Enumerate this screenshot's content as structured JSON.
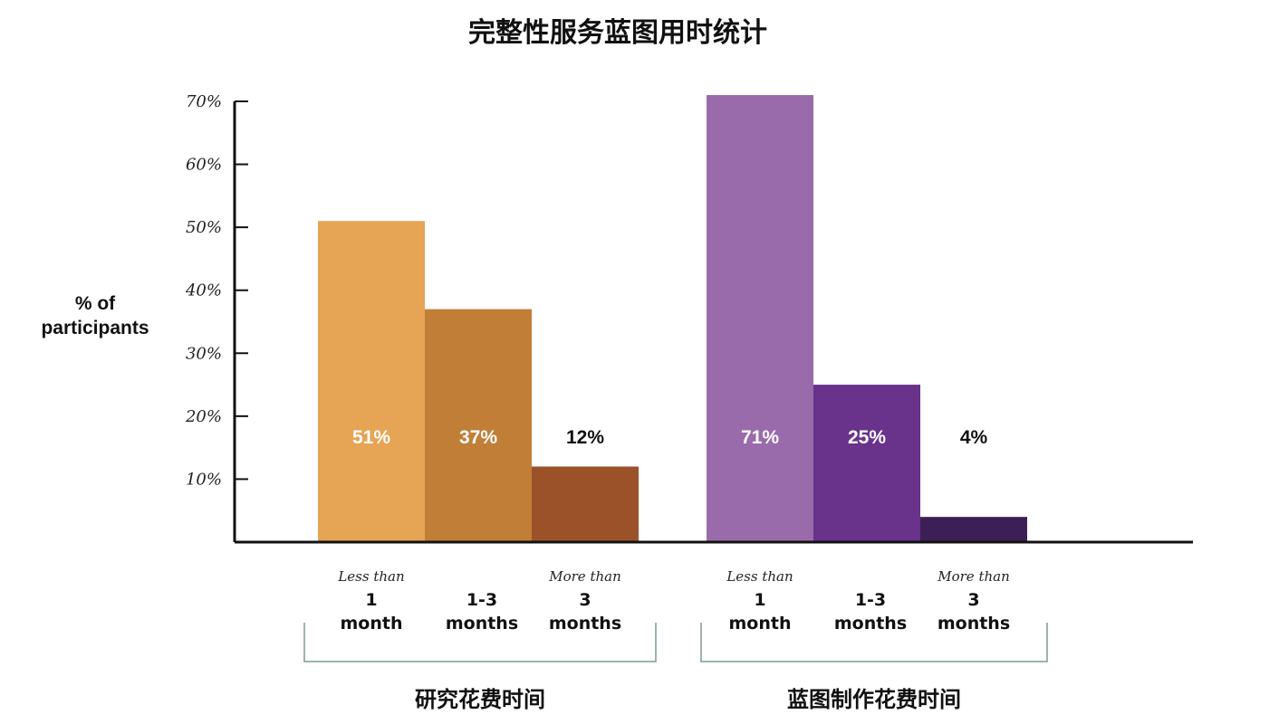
{
  "title": "完整性服务蓝图用时统计",
  "chart_data": {
    "type": "bar",
    "title": "完整性服务蓝图用时统计",
    "ylabel": [
      "% of",
      "participants"
    ],
    "ylim": [
      0,
      70
    ],
    "yticks": [
      "10%",
      "20%",
      "30%",
      "40%",
      "50%",
      "60%",
      "70%"
    ],
    "ytick_values": [
      10,
      20,
      30,
      40,
      50,
      60,
      70
    ],
    "grid": false,
    "categories": [
      {
        "small": "Less than",
        "lines": [
          "1",
          "month"
        ]
      },
      {
        "small": "",
        "lines": [
          "1-3",
          "months"
        ]
      },
      {
        "small": "More than",
        "lines": [
          "3",
          "months"
        ]
      }
    ],
    "groups": [
      {
        "name": "研究花费时间",
        "values": [
          51,
          37,
          12
        ],
        "labels": [
          "51%",
          "37%",
          "12%"
        ],
        "colors": [
          "#E6A455",
          "#C17E37",
          "#9B5229"
        ],
        "label_colors": [
          "#ffffff",
          "#ffffff",
          "#111111"
        ]
      },
      {
        "name": "蓝图制作花费时间",
        "values": [
          71,
          25,
          4
        ],
        "labels": [
          "71%",
          "25%",
          "4%"
        ],
        "colors": [
          "#9A6BAA",
          "#69328B",
          "#3D1F57"
        ],
        "label_colors": [
          "#ffffff",
          "#ffffff",
          "#111111"
        ]
      }
    ]
  }
}
